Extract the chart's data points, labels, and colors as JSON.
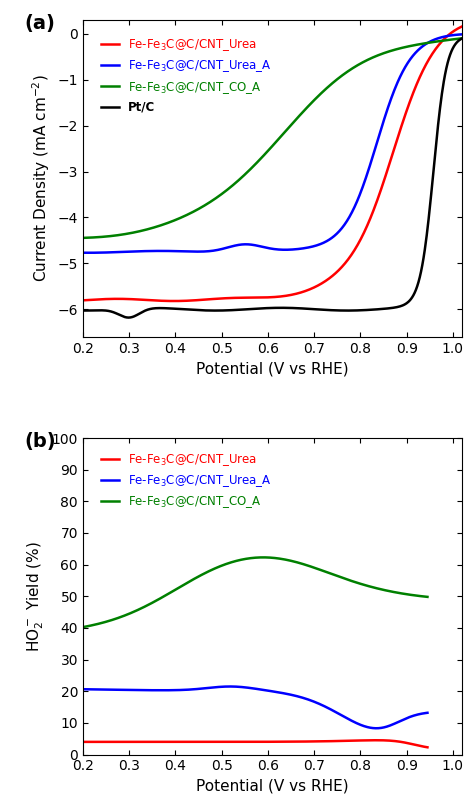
{
  "panel_a": {
    "xlabel": "Potential (V vs RHE)",
    "xlim": [
      0.2,
      1.02
    ],
    "ylim": [
      -6.6,
      0.3
    ],
    "xticks": [
      0.2,
      0.3,
      0.4,
      0.5,
      0.6,
      0.7,
      0.8,
      0.9,
      1.0
    ],
    "yticks": [
      0,
      -1,
      -2,
      -3,
      -4,
      -5,
      -6
    ],
    "colors": {
      "red": "#ff0000",
      "blue": "#0000ff",
      "green": "#008000",
      "black": "#000000"
    },
    "legend": [
      {
        "label": "Fe-Fe₃C@C/CNT_Urea",
        "color": "#ff0000"
      },
      {
        "label": "Fe-Fe₃C@C/CNT_Urea_A",
        "color": "#0000ff"
      },
      {
        "label": "Fe-Fe₃C@C/CNT_CO_A",
        "color": "#008000"
      },
      {
        "label": "Pt/C",
        "color": "#000000"
      }
    ]
  },
  "panel_b": {
    "xlabel": "Potential (V vs RHE)",
    "xlim": [
      0.2,
      1.02
    ],
    "ylim": [
      0,
      100
    ],
    "xticks": [
      0.2,
      0.3,
      0.4,
      0.5,
      0.6,
      0.7,
      0.8,
      0.9,
      1.0
    ],
    "yticks": [
      0,
      10,
      20,
      30,
      40,
      50,
      60,
      70,
      80,
      90,
      100
    ],
    "colors": {
      "red": "#ff0000",
      "blue": "#0000ff",
      "green": "#008000"
    },
    "legend": [
      {
        "label": "Fe-Fe₃C@C/CNT_Urea",
        "color": "#ff0000"
      },
      {
        "label": "Fe-Fe₃C@C/CNT_Urea_A",
        "color": "#0000ff"
      },
      {
        "label": "Fe-Fe₃C@C/CNT_CO_A",
        "color": "#008000"
      }
    ]
  }
}
